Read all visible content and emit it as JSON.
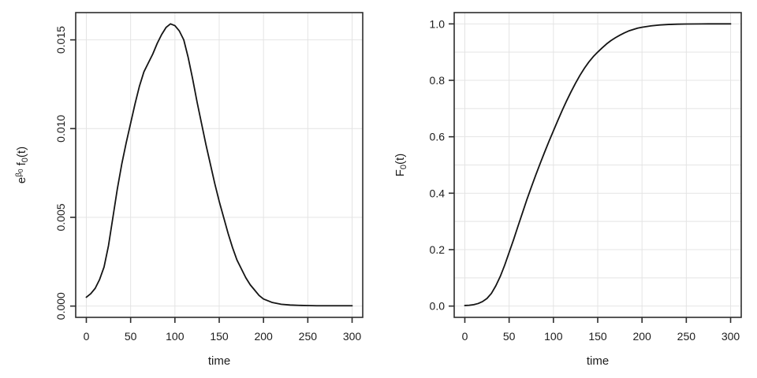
{
  "figure": {
    "background": "#ffffff",
    "panel_count": 2
  },
  "style": {
    "line_color": "#141414",
    "grid_color": "#e4e4e4",
    "box_color": "#2d2d2d",
    "tick_color": "#2d2d2d",
    "text_color": "#1c1c1c"
  },
  "chart_data": [
    {
      "type": "line",
      "title": "",
      "xlabel": "time",
      "ylabel": "e^(beta0) f0(t)",
      "ylabel_parts": [
        {
          "t": "e",
          "k": "n"
        },
        {
          "t": "β",
          "k": "sup"
        },
        {
          "t": "0",
          "k": "supsub"
        },
        {
          "t": " f",
          "k": "n"
        },
        {
          "t": "0",
          "k": "sub"
        },
        {
          "t": "(t)",
          "k": "n"
        }
      ],
      "xlim": [
        0,
        300
      ],
      "ylim": [
        0,
        0.0159
      ],
      "x_ticks": [
        0,
        50,
        100,
        150,
        200,
        250,
        300
      ],
      "x_tick_labels": [
        "0",
        "50",
        "100",
        "150",
        "200",
        "250",
        "300"
      ],
      "y_ticks": [
        0,
        0.005,
        0.01,
        0.015
      ],
      "y_tick_labels": [
        "0.000",
        "0.005",
        "0.010",
        "0.015"
      ],
      "y_tick_labels_rotated": true,
      "grid": true,
      "grid_x": [
        0,
        50,
        100,
        150,
        200,
        250,
        300
      ],
      "grid_y": [
        0,
        0.005,
        0.01,
        0.015
      ],
      "legend": "none",
      "series": [
        {
          "name": "e^(beta0) f0(t)",
          "x": [
            0,
            5,
            10,
            15,
            20,
            25,
            30,
            35,
            40,
            45,
            50,
            55,
            60,
            65,
            70,
            75,
            80,
            85,
            90,
            95,
            100,
            105,
            110,
            115,
            120,
            125,
            130,
            135,
            140,
            145,
            150,
            155,
            160,
            165,
            170,
            175,
            180,
            185,
            190,
            195,
            200,
            210,
            220,
            230,
            240,
            250,
            260,
            280,
            300
          ],
          "y": [
            0.0005,
            0.0007,
            0.001,
            0.0015,
            0.0022,
            0.0034,
            0.005,
            0.0066,
            0.008,
            0.0092,
            0.0103,
            0.0114,
            0.0124,
            0.0132,
            0.0137,
            0.0142,
            0.0148,
            0.0153,
            0.0157,
            0.0159,
            0.0158,
            0.0155,
            0.015,
            0.014,
            0.0128,
            0.0115,
            0.0103,
            0.0091,
            0.008,
            0.0069,
            0.0059,
            0.005,
            0.0041,
            0.0033,
            0.0026,
            0.0021,
            0.0016,
            0.0012,
            0.0009,
            0.0006,
            0.0004,
            0.0002,
            0.0001,
            6e-05,
            4e-05,
            3e-05,
            2e-05,
            2e-05,
            2e-05
          ]
        }
      ]
    },
    {
      "type": "line",
      "title": "",
      "xlabel": "time",
      "ylabel": "F0(t)",
      "ylabel_parts": [
        {
          "t": "F",
          "k": "n"
        },
        {
          "t": "0",
          "k": "sub"
        },
        {
          "t": "(t)",
          "k": "n"
        }
      ],
      "xlim": [
        0,
        300
      ],
      "ylim": [
        0,
        1.0
      ],
      "x_ticks": [
        0,
        50,
        100,
        150,
        200,
        250,
        300
      ],
      "x_tick_labels": [
        "0",
        "50",
        "100",
        "150",
        "200",
        "250",
        "300"
      ],
      "y_ticks": [
        0,
        0.2,
        0.4,
        0.6,
        0.8,
        1.0
      ],
      "y_tick_labels": [
        "0.0",
        "0.2",
        "0.4",
        "0.6",
        "0.8",
        "1.0"
      ],
      "y_tick_labels_rotated": false,
      "grid": true,
      "grid_x": [
        0,
        50,
        100,
        150,
        200,
        250,
        300
      ],
      "grid_y": [
        0,
        0.1,
        0.2,
        0.3,
        0.4,
        0.5,
        0.6,
        0.7,
        0.8,
        0.9,
        1.0
      ],
      "legend": "none",
      "series": [
        {
          "name": "F0(t)",
          "x": [
            0,
            5,
            10,
            15,
            20,
            25,
            30,
            35,
            40,
            45,
            50,
            55,
            60,
            65,
            70,
            75,
            80,
            85,
            90,
            95,
            100,
            105,
            110,
            115,
            120,
            125,
            130,
            135,
            140,
            145,
            150,
            155,
            160,
            165,
            170,
            175,
            180,
            185,
            190,
            195,
            200,
            210,
            220,
            230,
            240,
            250,
            275,
            300
          ],
          "y": [
            0.002,
            0.003,
            0.005,
            0.009,
            0.016,
            0.027,
            0.045,
            0.072,
            0.105,
            0.145,
            0.19,
            0.235,
            0.283,
            0.33,
            0.377,
            0.421,
            0.464,
            0.505,
            0.545,
            0.584,
            0.621,
            0.658,
            0.694,
            0.728,
            0.76,
            0.79,
            0.818,
            0.843,
            0.865,
            0.884,
            0.9,
            0.915,
            0.929,
            0.941,
            0.951,
            0.96,
            0.968,
            0.975,
            0.98,
            0.985,
            0.988,
            0.993,
            0.996,
            0.998,
            0.999,
            0.9995,
            1.0,
            1.0
          ]
        }
      ]
    }
  ]
}
